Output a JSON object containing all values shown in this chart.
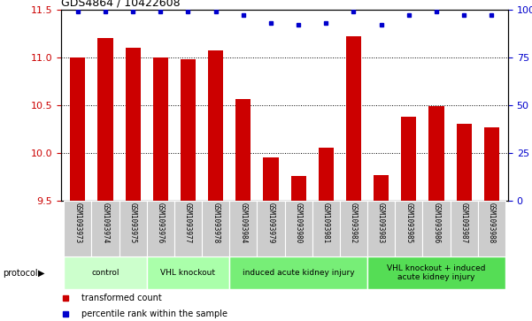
{
  "title": "GDS4864 / 10422608",
  "samples": [
    "GSM1093973",
    "GSM1093974",
    "GSM1093975",
    "GSM1093976",
    "GSM1093977",
    "GSM1093978",
    "GSM1093984",
    "GSM1093979",
    "GSM1093980",
    "GSM1093981",
    "GSM1093982",
    "GSM1093983",
    "GSM1093985",
    "GSM1093986",
    "GSM1093987",
    "GSM1093988"
  ],
  "bar_values": [
    11.0,
    11.2,
    11.1,
    11.0,
    10.98,
    11.07,
    10.56,
    9.95,
    9.76,
    10.05,
    11.22,
    9.77,
    10.38,
    10.49,
    10.3,
    10.27
  ],
  "dot_values": [
    99,
    99,
    99,
    99,
    99,
    99,
    97,
    93,
    92,
    93,
    99,
    92,
    97,
    99,
    97,
    97
  ],
  "ylim_left": [
    9.5,
    11.5
  ],
  "ylim_right": [
    0,
    100
  ],
  "yticks_left": [
    9.5,
    10.0,
    10.5,
    11.0,
    11.5
  ],
  "yticks_right": [
    0,
    25,
    50,
    75,
    100
  ],
  "bar_color": "#cc0000",
  "dot_color": "#0000cc",
  "bar_bottom": 9.5,
  "groups": [
    {
      "label": "control",
      "start": 0,
      "end": 3
    },
    {
      "label": "VHL knockout",
      "start": 3,
      "end": 6
    },
    {
      "label": "induced acute kidney injury",
      "start": 6,
      "end": 11
    },
    {
      "label": "VHL knockout + induced\nacute kidney injury",
      "start": 11,
      "end": 16
    }
  ],
  "group_colors": [
    "#ccffcc",
    "#aaffaa",
    "#77ee77",
    "#55dd55"
  ],
  "protocol_label": "protocol",
  "legend_bar_label": "transformed count",
  "legend_dot_label": "percentile rank within the sample",
  "tick_label_color": "#cc0000",
  "right_axis_color": "#0000cc",
  "xticklabel_bg": "#cccccc",
  "bg_white": "#ffffff"
}
